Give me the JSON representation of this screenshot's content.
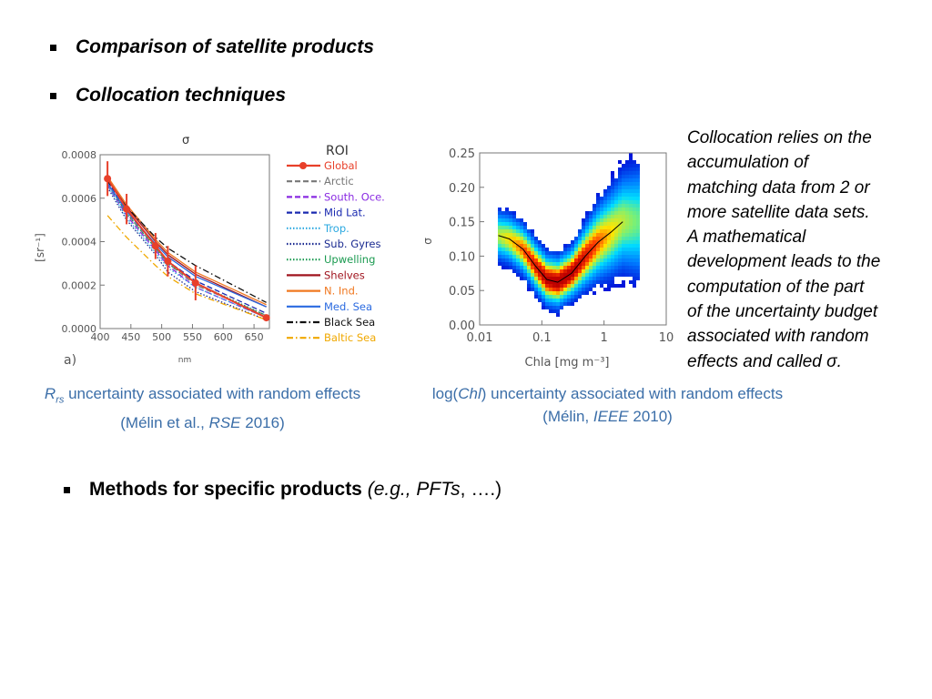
{
  "bullets": [
    {
      "text": "Comparison of satellite products"
    },
    {
      "text": "Collocation techniques"
    }
  ],
  "bullet3": {
    "main": "Methods for specific products",
    "space": " ",
    "italic": "(e.g., PFTs",
    "rest": ", ….)"
  },
  "sidenote": [
    "Collocation relies on the",
    "accumulation of",
    "matching data from 2 or",
    "more satellite data sets.",
    "A mathematical",
    "development leads to the",
    "computation of the part",
    "of the uncertainty budget",
    "associated with random",
    "effects and called σ."
  ],
  "caption1": {
    "r": "R",
    "rs": "rs",
    "line1_rest": " uncertainty associated with random effects",
    "line2_a": "(Mélin et al., ",
    "line2_i": "RSE",
    "line2_b": " 2016)"
  },
  "caption2": {
    "a": "log(",
    "i": "Chl",
    "b": ") uncertainty associated with random effects",
    "line2_a": "(Mélin, ",
    "line2_i": "IEEE",
    "line2_b": " 2010)"
  },
  "chart_data": [
    {
      "type": "line",
      "title": "σ",
      "xlabel": "nm",
      "ylabel": "[sr⁻¹]",
      "panel_label": "a)",
      "legend_title": "ROI",
      "legend_position": "right",
      "x": [
        412,
        443,
        490,
        510,
        555,
        670
      ],
      "xticks": [
        400,
        450,
        500,
        550,
        600,
        650
      ],
      "xtick_labels": [
        "400",
        "450",
        "500",
        "550",
        "600",
        "650"
      ],
      "yticks": [
        0,
        0.0002,
        0.0004,
        0.0006,
        0.0008
      ],
      "ytick_labels": [
        "0.0000",
        "0.0002",
        "0.0004",
        "0.0006",
        "0.0008"
      ],
      "xlim": [
        400,
        675
      ],
      "ylim": [
        0,
        0.0008
      ],
      "series": [
        {
          "name": "Global",
          "color": "#e8402a",
          "dash": "solid",
          "values": [
            0.00069,
            0.00055,
            0.00038,
            0.00031,
            0.00021,
            5e-05
          ],
          "error": [
            8e-05,
            7e-05,
            6e-05,
            7e-05,
            8e-05,
            1e-05
          ]
        },
        {
          "name": "Arctic",
          "color": "#777777",
          "dash": "dashed",
          "values": [
            0.00067,
            0.00053,
            0.00037,
            0.0003,
            0.0002,
            6e-05
          ]
        },
        {
          "name": "South. Oce.",
          "color": "#8a2be2",
          "dash": "dashed",
          "values": [
            0.00066,
            0.00052,
            0.00036,
            0.00029,
            0.00019,
            5e-05
          ]
        },
        {
          "name": "Mid Lat.",
          "color": "#1a2ab0",
          "dash": "dashed",
          "values": [
            0.00068,
            0.00054,
            0.00038,
            0.00031,
            0.00022,
            7e-05
          ]
        },
        {
          "name": "Trop.",
          "color": "#2aa8e0",
          "dash": "dotted",
          "values": [
            0.00066,
            0.00051,
            0.00035,
            0.00028,
            0.00019,
            5e-05
          ]
        },
        {
          "name": "Sub. Gyres",
          "color": "#1a2a90",
          "dash": "dotted",
          "values": [
            0.00065,
            0.0005,
            0.00034,
            0.00026,
            0.00017,
            4e-05
          ]
        },
        {
          "name": "Upwelling",
          "color": "#1a9a50",
          "dash": "dotted",
          "values": [
            0.00067,
            0.00053,
            0.00037,
            0.0003,
            0.00021,
            6e-05
          ]
        },
        {
          "name": "Shelves",
          "color": "#a0141e",
          "dash": "solid",
          "values": [
            0.00069,
            0.00056,
            0.0004,
            0.00034,
            0.00025,
            0.0001
          ]
        },
        {
          "name": "N. Ind.",
          "color": "#f07820",
          "dash": "solid",
          "values": [
            0.0007,
            0.00057,
            0.00041,
            0.00035,
            0.00026,
            0.00011
          ]
        },
        {
          "name": "Med. Sea",
          "color": "#2a6ae0",
          "dash": "solid",
          "values": [
            0.00067,
            0.00054,
            0.00039,
            0.00033,
            0.00024,
            0.0001
          ]
        },
        {
          "name": "Black Sea",
          "color": "#111111",
          "dash": "dashdot",
          "values": [
            0.00068,
            0.00056,
            0.00042,
            0.00037,
            0.00029,
            0.00012
          ]
        },
        {
          "name": "Baltic Sea",
          "color": "#f0a800",
          "dash": "dashdot",
          "values": [
            0.00052,
            0.00042,
            0.00029,
            0.00024,
            0.00016,
            4e-05
          ]
        }
      ]
    },
    {
      "type": "heatmap",
      "title": "",
      "xlabel": "Chla [mg m⁻³]",
      "ylabel": "σ",
      "x_scale": "log",
      "xlim": [
        0.01,
        10
      ],
      "ylim": [
        0,
        0.25
      ],
      "xticks": [
        0.01,
        0.1,
        1,
        10
      ],
      "xtick_labels": [
        "0.01",
        "0.1",
        "1",
        "10"
      ],
      "yticks": [
        0,
        0.05,
        0.1,
        0.15,
        0.2,
        0.25
      ],
      "ytick_labels": [
        "0.00",
        "0.05",
        "0.10",
        "0.15",
        "0.20",
        "0.25"
      ],
      "mean_curve": {
        "x": [
          0.02,
          0.03,
          0.05,
          0.08,
          0.12,
          0.18,
          0.3,
          0.5,
          0.8,
          1.3,
          2.0
        ],
        "y": [
          0.13,
          0.125,
          0.11,
          0.085,
          0.066,
          0.062,
          0.075,
          0.1,
          0.12,
          0.135,
          0.15
        ]
      }
    }
  ]
}
